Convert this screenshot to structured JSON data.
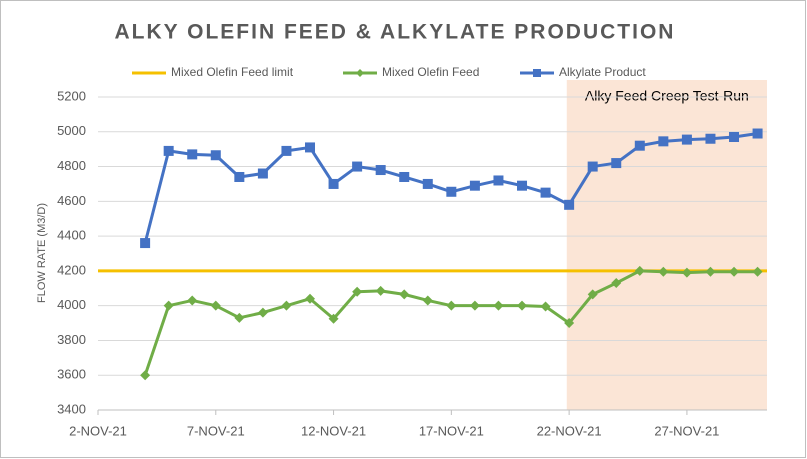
{
  "chart_data": {
    "type": "line",
    "title": "ALKY OLEFIN FEED & ALKYLATE PRODUCTION",
    "y_label": "FLOW RATE (M3/D)",
    "x": [
      4,
      5,
      6,
      7,
      8,
      9,
      10,
      11,
      12,
      13,
      14,
      15,
      16,
      17,
      18,
      19,
      20,
      21,
      22,
      23,
      24,
      25,
      26,
      27,
      28,
      29,
      30
    ],
    "xlim": [
      2,
      30.4
    ],
    "xticks": [
      {
        "value": 2,
        "label": "2-NOV-21"
      },
      {
        "value": 7,
        "label": "7-NOV-21"
      },
      {
        "value": 12,
        "label": "12-NOV-21"
      },
      {
        "value": 17,
        "label": "17-NOV-21"
      },
      {
        "value": 22,
        "label": "22-NOV-21"
      },
      {
        "value": 27,
        "label": "27-NOV-21"
      }
    ],
    "ylim": [
      3400,
      5200
    ],
    "yticks": [
      3400,
      3600,
      3800,
      4000,
      4200,
      4400,
      4600,
      4800,
      5000,
      5200
    ],
    "grid": true,
    "hline": {
      "name": "Mixed Olefin Feed limit",
      "color": "#f5c000",
      "value": 4200
    },
    "shade": {
      "label": "Alky Feed Creep Test-Run",
      "color": "#fbe5d6",
      "range": [
        21.9,
        30.4
      ]
    },
    "series": [
      {
        "name": "Mixed Olefin Feed",
        "color": "#70ad47",
        "marker": "diamond",
        "values": [
          3600,
          4000,
          4030,
          4000,
          3930,
          3960,
          4000,
          4040,
          3925,
          4080,
          4085,
          4065,
          4030,
          4000,
          4000,
          4000,
          4000,
          3995,
          3900,
          4065,
          4130,
          4200,
          4195,
          4190,
          4195,
          4195,
          4195
        ]
      },
      {
        "name": "Alkylate Product",
        "color": "#4472c4",
        "marker": "square",
        "values": [
          4360,
          4890,
          4870,
          4865,
          4740,
          4760,
          4890,
          4910,
          4700,
          4800,
          4780,
          4740,
          4700,
          4655,
          4690,
          4720,
          4690,
          4650,
          4580,
          4800,
          4820,
          4920,
          4945,
          4955,
          4960,
          4970,
          4990
        ]
      }
    ]
  }
}
